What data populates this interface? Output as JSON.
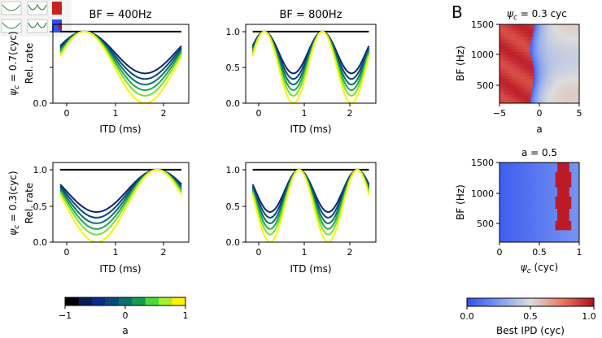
{
  "figure": {
    "panel_label_b": "B",
    "colorbar_a": {
      "label": "a",
      "ticks": [
        "−1",
        "0",
        "1"
      ],
      "colors": [
        "#000000",
        "#0a1a55",
        "#0b2a8a",
        "#0a4a7a",
        "#0d6e6e",
        "#159a4e",
        "#4cd93a",
        "#a8ef2a",
        "#fff200"
      ]
    },
    "colorbar_ipd": {
      "label": "Best IPD (cyc)",
      "ticks": [
        "0.0",
        "0.5",
        "1.0"
      ]
    }
  },
  "chart_data": [
    {
      "type": "line",
      "id": "tuning-psi07-bf400",
      "title": "BF = 400Hz",
      "row_label_a": "ψ",
      "row_label_b": "c",
      "row_label_c": " = 0.7(cyc)",
      "ylabel": "Rel. rate",
      "xlabel": "ITD (ms)",
      "xlim": [
        -0.15,
        2.65
      ],
      "ylim": [
        0.0,
        1.1
      ],
      "xticks": [
        "0",
        "1",
        "2"
      ],
      "yticks": [
        "0.0",
        "0.5",
        "1.0"
      ],
      "bf_hz": 400,
      "psi_c": 0.7,
      "a_values": [
        -1,
        -0.6,
        -0.3,
        0,
        0.3,
        0.6,
        1
      ]
    },
    {
      "type": "line",
      "id": "tuning-psi07-bf800",
      "title": "BF = 800Hz",
      "ylabel": "",
      "xlabel": "ITD (ms)",
      "xlim": [
        -0.15,
        2.65
      ],
      "ylim": [
        0.0,
        1.1
      ],
      "xticks": [
        "0",
        "1",
        "2"
      ],
      "yticks": [
        "0.0",
        "0.5",
        "1.0"
      ],
      "bf_hz": 800,
      "psi_c": 0.7,
      "a_values": [
        -1,
        -0.6,
        -0.3,
        0,
        0.3,
        0.6,
        1
      ]
    },
    {
      "type": "line",
      "id": "tuning-psi03-bf400",
      "title": "",
      "row_label_a": "ψ",
      "row_label_b": "c",
      "row_label_c": " = 0.3(cyc)",
      "ylabel": "Rel. rate",
      "xlabel": "ITD (ms)",
      "xlim": [
        -0.15,
        2.65
      ],
      "ylim": [
        0.0,
        1.1
      ],
      "xticks": [
        "0",
        "1",
        "2"
      ],
      "yticks": [
        "0.0",
        "0.5",
        "1.0"
      ],
      "bf_hz": 400,
      "psi_c": 0.3,
      "a_values": [
        -1,
        -0.6,
        -0.3,
        0,
        0.3,
        0.6,
        1
      ]
    },
    {
      "type": "line",
      "id": "tuning-psi03-bf800",
      "title": "",
      "ylabel": "",
      "xlabel": "ITD (ms)",
      "xlim": [
        -0.15,
        2.65
      ],
      "ylim": [
        0.0,
        1.1
      ],
      "xticks": [
        "0",
        "1",
        "2"
      ],
      "yticks": [
        "0.0",
        "0.5",
        "1.0"
      ],
      "bf_hz": 800,
      "psi_c": 0.3,
      "a_values": [
        -1,
        -0.6,
        -0.3,
        0,
        0.3,
        0.6,
        1
      ]
    },
    {
      "type": "heatmap",
      "id": "heatmap-psi",
      "title_a": "ψ",
      "title_b": "c",
      "title_c": " = 0.3 cyc",
      "xlabel": "a",
      "ylabel": "BF (Hz)",
      "xlim": [
        -5,
        5
      ],
      "ylim": [
        200,
        1500
      ],
      "xticks": [
        "−5",
        "0",
        "5"
      ],
      "yticks": [
        "500",
        "1000",
        "1500"
      ],
      "psi_c": 0.3,
      "value": "best IPD (cyc)"
    },
    {
      "type": "heatmap",
      "id": "heatmap-a",
      "title": "a = 0.5",
      "xlabel_a": "ψ",
      "xlabel_b": "c",
      "xlabel_c": " (cyc)",
      "ylabel": "BF (Hz)",
      "xlim": [
        0,
        1
      ],
      "ylim": [
        200,
        1500
      ],
      "xticks": [
        "0",
        "0.5",
        "1"
      ],
      "yticks": [
        "500",
        "1000",
        "1500"
      ],
      "a": 0.5,
      "value": "best IPD (cyc)"
    }
  ]
}
